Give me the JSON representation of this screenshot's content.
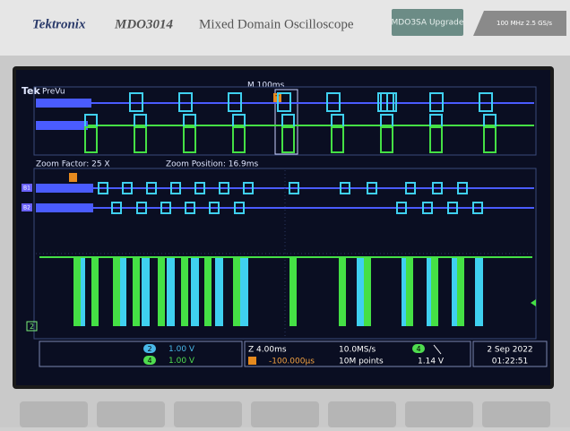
{
  "header": {
    "brand": "Tektronix",
    "model": "MDO3014",
    "description": "Mixed Domain Oscilloscope",
    "upgrade": "MDO3SA Upgrade",
    "spec": "100 MHz 2.5 GS/s"
  },
  "screen": {
    "logo": "Tek",
    "mode": "PreVu",
    "timebase": "M 100ms",
    "trigger_marker": "T",
    "zoom_factor": "Zoom Factor: 25 X",
    "zoom_position": "Zoom Position: 16.9ms",
    "bus_labels": [
      "B1",
      "B2"
    ],
    "channel_marker": "2"
  },
  "status": {
    "channels": [
      {
        "number": "2",
        "scale": "1.00 V"
      },
      {
        "number": "4",
        "scale": "1.00 V"
      }
    ],
    "zoom": "Z 4.00ms",
    "trigger_delay": "-100.000µs",
    "sample_rate": "10.0MS/s",
    "record_length": "10M points",
    "trigger_channel": "4",
    "trigger_level": "1.14 V",
    "date": "2 Sep 2022",
    "time": "01:22:51"
  }
}
